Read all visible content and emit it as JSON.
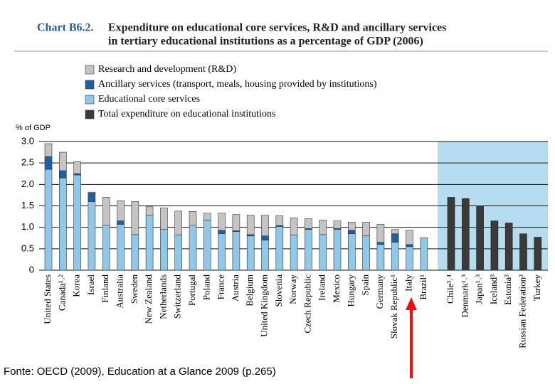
{
  "chart_data": {
    "type": "stacked-bar",
    "title_label": "Chart B6.2.",
    "title_lines": [
      "Expenditure on educational core services, R&D and ancillary services",
      "in tertiary educational institutions as a percentage of GDP (2006)"
    ],
    "y_label": "% of GDP",
    "annotation": "Fonte: OECD (2009), Education at a Glance 2009 (p.265)",
    "categories": [
      "United States",
      "Canada¹˒²",
      "Korea",
      "Israel",
      "Finland",
      "Australia",
      "Sweden",
      "New Zealand",
      "Netherlands",
      "Switzerland",
      "Portugal",
      "Poland",
      "France",
      "Austria",
      "Belgium",
      "United Kingdom",
      "Slovenia",
      "Norway",
      "Czech Republic",
      "Ireland",
      "Mexico",
      "Hungary",
      "Spain",
      "Germany",
      "Slovak Republic¹",
      "Italy",
      "Brazil¹",
      "Chile³˒⁴",
      "Denmark¹˒³",
      "Japan¹˒³",
      "Iceland³",
      "Estonia³",
      "Russian Federation³",
      "Turkey"
    ],
    "series": [
      {
        "name": "Research and development (R&D)",
        "color": "#c4c4c4",
        "values": [
          0.3,
          0.43,
          0.28,
          0.02,
          0.65,
          0.47,
          0.77,
          0.2,
          0.5,
          0.56,
          0.32,
          0.16,
          0.4,
          0.38,
          0.45,
          0.48,
          0.23,
          0.4,
          0.23,
          0.34,
          0.18,
          0.19,
          0.32,
          0.42,
          0.1,
          0.33,
          0,
          null,
          null,
          null,
          null,
          null,
          null,
          null
        ]
      },
      {
        "name": "Ancillary services (transport, meals, housing provided by institutions)",
        "color": "#1f5fa6",
        "values": [
          0.3,
          0.17,
          0.03,
          0.2,
          0,
          0.08,
          0,
          0,
          0,
          0,
          0,
          0,
          0.08,
          0.02,
          0.03,
          0.1,
          0.02,
          0,
          0.02,
          0,
          0.02,
          0.08,
          0,
          0.05,
          0.2,
          0.05,
          0,
          null,
          null,
          null,
          null,
          null,
          null,
          null
        ]
      },
      {
        "name": "Educational core services",
        "color": "#8fc8e8",
        "values": [
          2.35,
          2.15,
          2.22,
          1.6,
          1.05,
          1.07,
          0.83,
          1.28,
          0.95,
          0.82,
          1.05,
          1.17,
          0.85,
          0.9,
          0.8,
          0.7,
          1.02,
          0.82,
          0.95,
          0.83,
          0.95,
          0.85,
          0.8,
          0.6,
          0.65,
          0.55,
          0.76,
          null,
          null,
          null,
          null,
          null,
          null,
          null
        ]
      },
      {
        "name": "Total expenditure on educational institutions",
        "color": "#3a3a3a",
        "stacked": false,
        "values": [
          null,
          null,
          null,
          null,
          null,
          null,
          null,
          null,
          null,
          null,
          null,
          null,
          null,
          null,
          null,
          null,
          null,
          null,
          null,
          null,
          null,
          null,
          null,
          null,
          null,
          null,
          null,
          1.7,
          1.67,
          1.5,
          1.15,
          1.1,
          0.85,
          0.77
        ]
      }
    ],
    "ylim": [
      0,
      3
    ],
    "yticks": [
      {
        "value": 0,
        "label": "0"
      },
      {
        "value": 0.5,
        "label": "0.5"
      },
      {
        "value": 1,
        "label": "1.0"
      },
      {
        "value": 1.5,
        "label": "1.5"
      },
      {
        "value": 2,
        "label": "2.0"
      },
      {
        "value": 2.5,
        "label": "2.5"
      },
      {
        "value": 3,
        "label": "3.0"
      }
    ],
    "grid": true
  }
}
